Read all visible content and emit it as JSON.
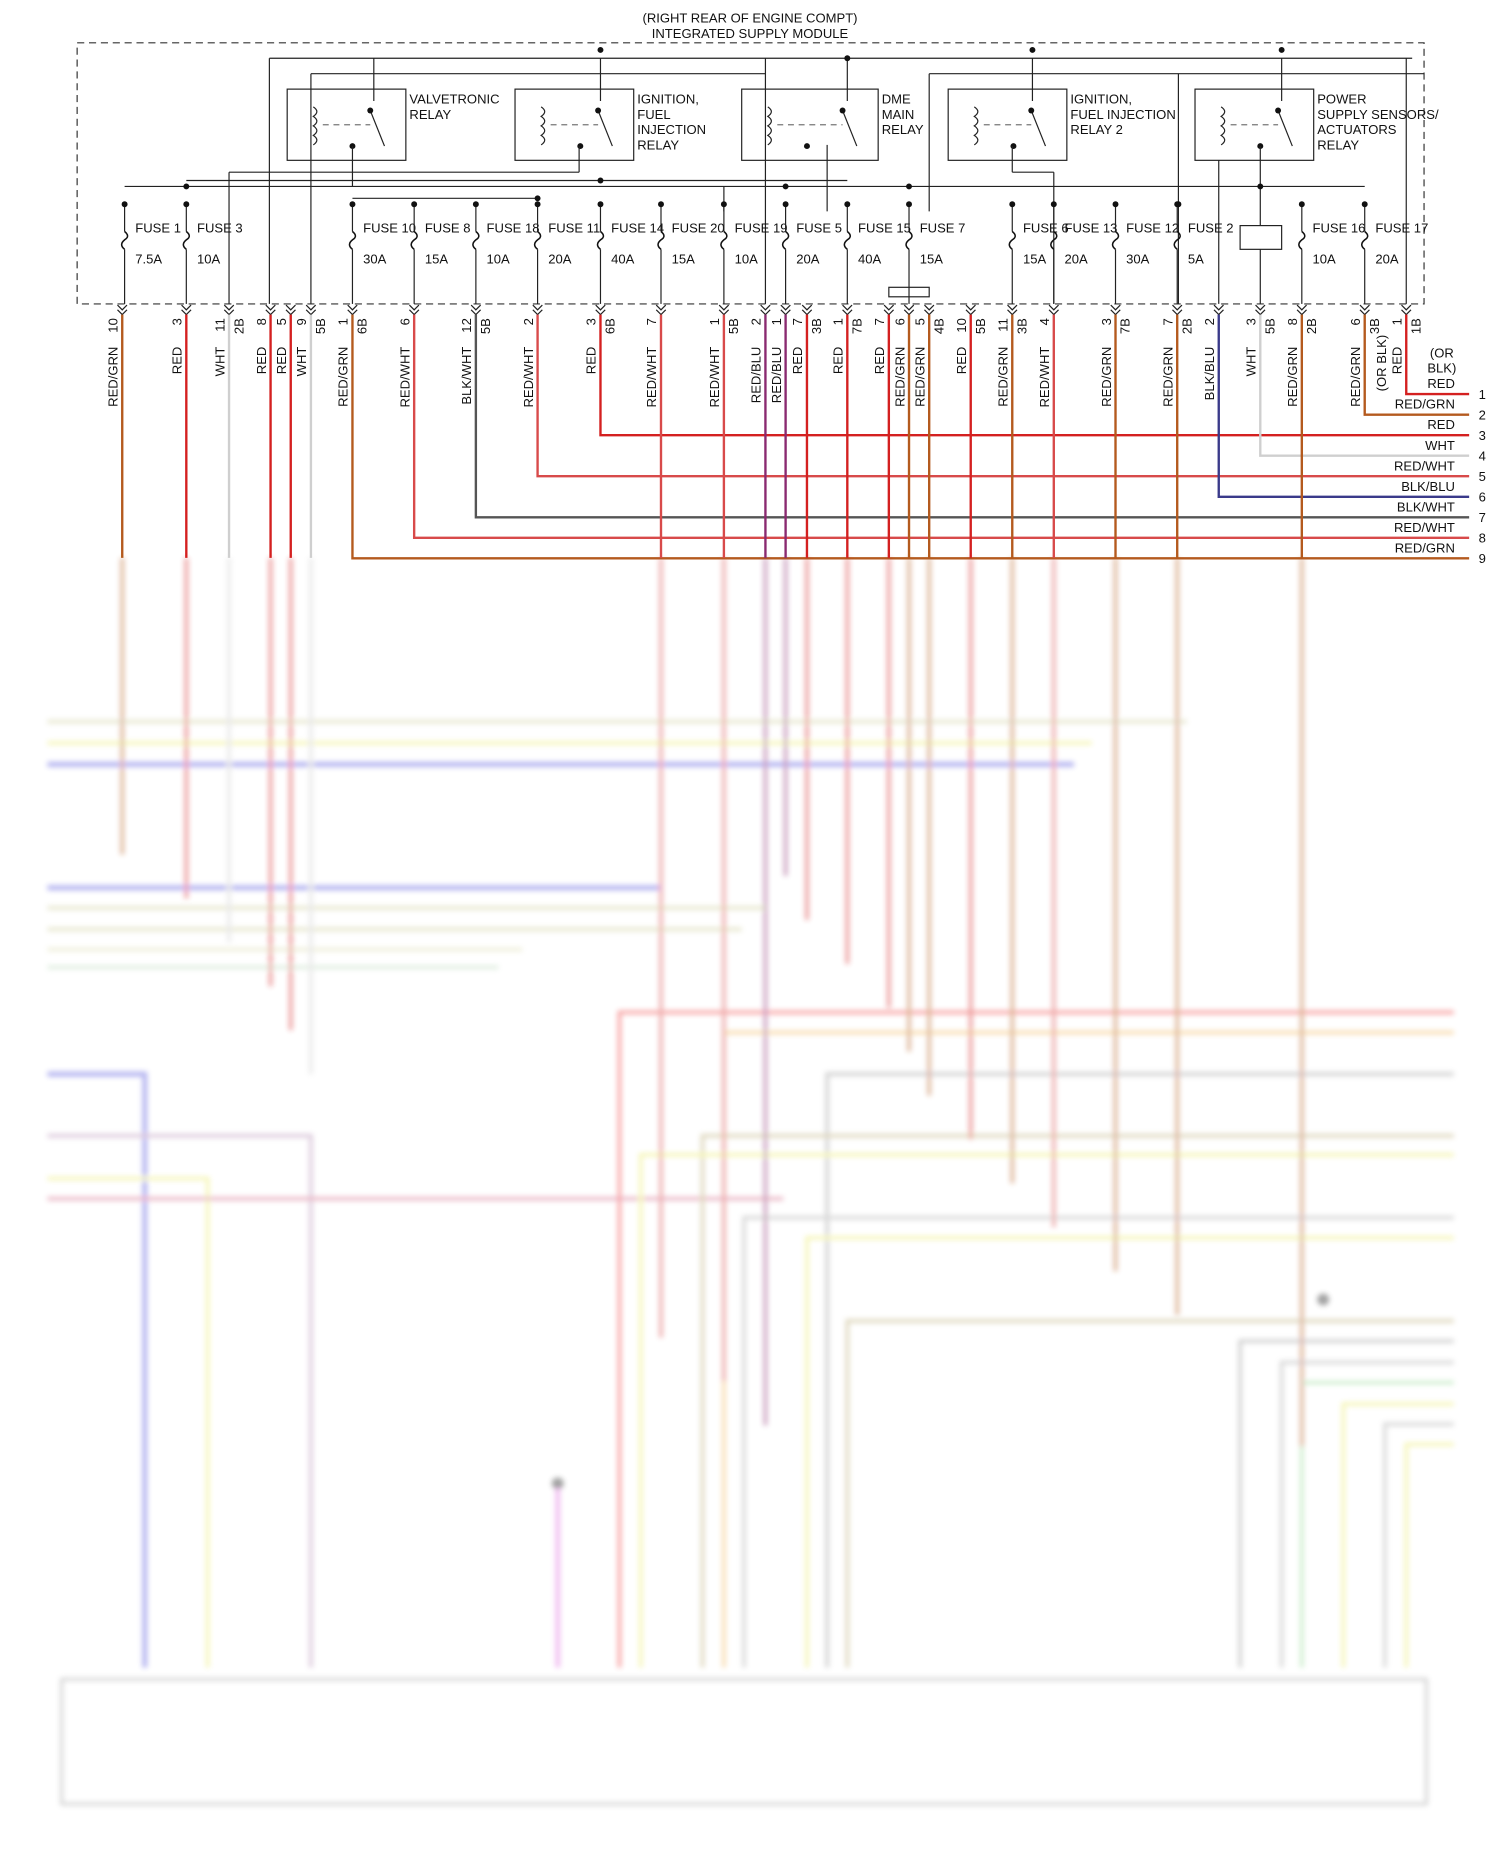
{
  "header": {
    "location": "(RIGHT REAR OF ENGINE COMPT)",
    "title": "INTEGRATED SUPPLY MODULE"
  },
  "relays": [
    {
      "lines": [
        "VALVETRONIC",
        "RELAY"
      ]
    },
    {
      "lines": [
        "IGNITION,",
        "FUEL",
        "INJECTION",
        "RELAY"
      ]
    },
    {
      "lines": [
        "DME",
        "MAIN",
        "RELAY"
      ]
    },
    {
      "lines": [
        "IGNITION,",
        "FUEL INJECTION",
        "RELAY 2"
      ]
    },
    {
      "lines": [
        "POWER",
        "SUPPLY SENSORS/",
        "ACTUATORS",
        "RELAY"
      ]
    }
  ],
  "fuses": [
    {
      "name": "FUSE 1",
      "rating": "7.5A"
    },
    {
      "name": "FUSE 3",
      "rating": "10A"
    },
    {
      "name": "FUSE 10",
      "rating": "30A"
    },
    {
      "name": "FUSE 8",
      "rating": "15A"
    },
    {
      "name": "FUSE 18",
      "rating": "10A"
    },
    {
      "name": "FUSE 11",
      "rating": "20A"
    },
    {
      "name": "FUSE 14",
      "rating": "40A"
    },
    {
      "name": "FUSE 20",
      "rating": "15A"
    },
    {
      "name": "FUSE 19",
      "rating": "10A"
    },
    {
      "name": "FUSE 5",
      "rating": "20A"
    },
    {
      "name": "FUSE 15",
      "rating": "40A"
    },
    {
      "name": "FUSE 7",
      "rating": "15A"
    },
    {
      "name": "FUSE 6",
      "rating": "15A"
    },
    {
      "name": "FUSE 13",
      "rating": "20A"
    },
    {
      "name": "FUSE 12",
      "rating": "30A"
    },
    {
      "name": "FUSE 2",
      "rating": "5A"
    },
    {
      "name": "FUSE 16",
      "rating": "10A"
    },
    {
      "name": "FUSE 17",
      "rating": "20A"
    }
  ],
  "wires": [
    {
      "pin": "10",
      "color": "RED/GRN"
    },
    {
      "pin": "3",
      "color": "RED"
    },
    {
      "pin": "11",
      "connector": "2B",
      "color": "WHT"
    },
    {
      "pin": "8",
      "color": "RED"
    },
    {
      "pin": "5",
      "color": "RED"
    },
    {
      "pin": "9",
      "connector": "5B",
      "color": "WHT"
    },
    {
      "pin": "1",
      "connector": "6B",
      "color": "RED/GRN"
    },
    {
      "pin": "6",
      "color": "RED/WHT"
    },
    {
      "pin": "12",
      "connector": "5B",
      "color": "BLK/WHT"
    },
    {
      "pin": "2",
      "color": "RED/WHT"
    },
    {
      "pin": "3",
      "connector": "6B",
      "color": "RED"
    },
    {
      "pin": "7",
      "color": "RED/WHT"
    },
    {
      "pin": "1",
      "connector": "5B",
      "color": "RED/WHT"
    },
    {
      "pin": "2",
      "color": "RED/BLU"
    },
    {
      "pin": "1",
      "color": "RED/BLU"
    },
    {
      "pin": "7",
      "connector": "3B",
      "color": "RED"
    },
    {
      "pin": "1",
      "connector": "7B",
      "color": "RED"
    },
    {
      "pin": "7",
      "color": "RED"
    },
    {
      "pin": "6",
      "color": "RED/GRN"
    },
    {
      "pin": "5",
      "connector": "4B",
      "color": "RED/GRN"
    },
    {
      "pin": "10",
      "connector": "5B",
      "color": "RED"
    },
    {
      "pin": "11",
      "connector": "3B",
      "color": "RED/GRN"
    },
    {
      "pin": "4",
      "color": "RED/WHT"
    },
    {
      "pin": "3",
      "connector": "7B",
      "color": "RED/GRN"
    },
    {
      "pin": "7",
      "connector": "2B",
      "color": "RED/GRN"
    },
    {
      "pin": "2",
      "color": "BLK/BLU"
    },
    {
      "pin": "3",
      "connector": "5B",
      "color": "WHT"
    },
    {
      "pin": "8",
      "connector": "2B",
      "color": "RED/GRN"
    },
    {
      "pin": "6",
      "connector": "3B",
      "color": "RED/GRN"
    },
    {
      "pin": "1",
      "connector": "1B",
      "color": "RED",
      "alt": "(OR BLK)"
    }
  ],
  "outputs": [
    {
      "number": "1",
      "alt_lines": [
        "(OR",
        "BLK)"
      ],
      "color": "RED"
    },
    {
      "number": "2",
      "color": "RED/GRN"
    },
    {
      "number": "3",
      "color": "RED"
    },
    {
      "number": "4",
      "color": "WHT"
    },
    {
      "number": "5",
      "color": "RED/WHT"
    },
    {
      "number": "6",
      "color": "BLK/BLU"
    },
    {
      "number": "7",
      "color": "BLK/WHT"
    },
    {
      "number": "8",
      "color": "RED/WHT"
    },
    {
      "number": "9",
      "color": "RED/GRN"
    }
  ]
}
